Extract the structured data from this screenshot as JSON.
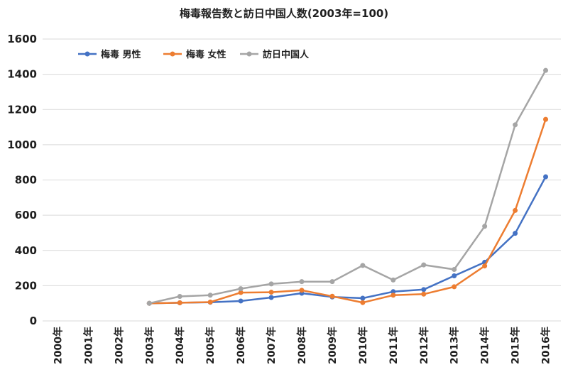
{
  "chart_data": {
    "type": "line",
    "title": "梅毒報告数と訪日中国人数(2003年=100)",
    "xlabel": "",
    "ylabel": "",
    "categories": [
      "2000年",
      "2001年",
      "2002年",
      "2003年",
      "2004年",
      "2005年",
      "2006年",
      "2007年",
      "2008年",
      "2009年",
      "2010年",
      "2011年",
      "2012年",
      "2013年",
      "2014年",
      "2015年",
      "2016年"
    ],
    "ylim": [
      0,
      1600
    ],
    "yticks": [
      0,
      200,
      400,
      600,
      800,
      1000,
      1200,
      1400,
      1600
    ],
    "grid": true,
    "legend_position": "top-left",
    "series": [
      {
        "name": "梅毒 男性",
        "color": "#4472C4",
        "values": [
          null,
          null,
          null,
          100,
          103,
          106,
          113,
          133,
          157,
          136,
          129,
          166,
          178,
          256,
          333,
          497,
          818
        ]
      },
      {
        "name": "梅毒 女性",
        "color": "#ED7D31",
        "values": [
          null,
          null,
          null,
          100,
          103,
          107,
          161,
          163,
          174,
          140,
          104,
          146,
          152,
          194,
          312,
          627,
          1144
        ]
      },
      {
        "name": "訪日中国人",
        "color": "#A5A5A5",
        "values": [
          null,
          null,
          null,
          100,
          139,
          146,
          183,
          210,
          223,
          223,
          315,
          232,
          318,
          292,
          537,
          1113,
          1422
        ]
      }
    ]
  }
}
